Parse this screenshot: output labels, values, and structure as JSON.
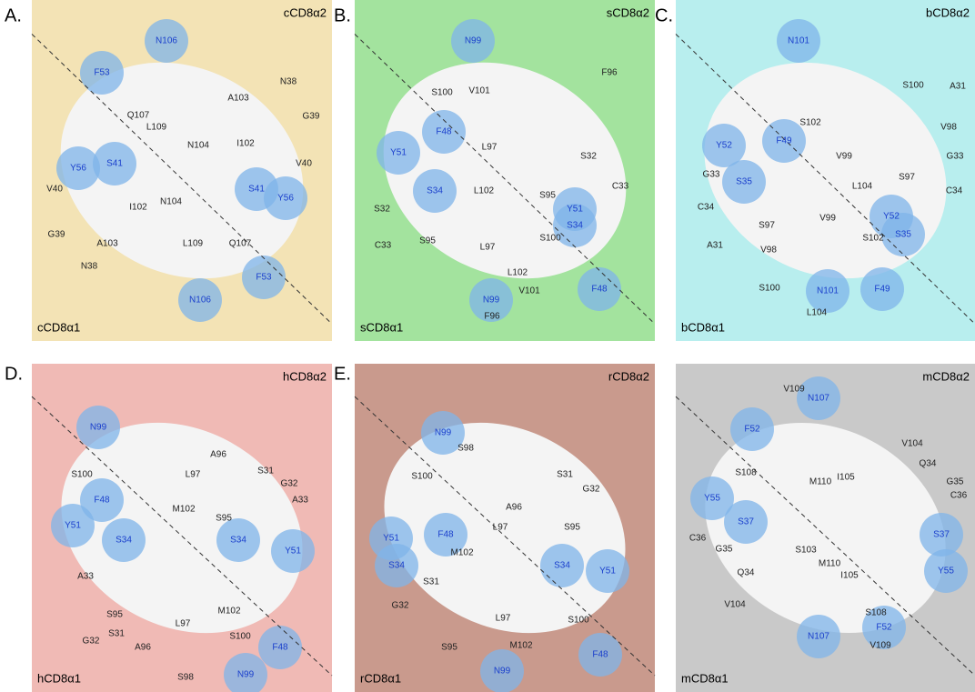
{
  "panels": [
    {
      "letter": "A.",
      "top_label": "cCD8α2",
      "bottom_label": "cCD8α1",
      "residues": [
        "N106",
        "F53",
        "Q107",
        "L109",
        "N38",
        "A103",
        "G39",
        "N104",
        "I102",
        "S41",
        "Y56",
        "V40",
        "V40",
        "I102",
        "N104",
        "S41",
        "Y56",
        "G39",
        "A103",
        "L109",
        "Q107",
        "N38",
        "F53",
        "N106"
      ]
    },
    {
      "letter": "B.",
      "top_label": "sCD8α2",
      "bottom_label": "sCD8α1",
      "residues": [
        "N99",
        "S100",
        "V101",
        "F96",
        "F48",
        "L97",
        "Y51",
        "L102",
        "S32",
        "S34",
        "Y51",
        "C33",
        "S32",
        "S95",
        "C33",
        "S95",
        "L97",
        "S100",
        "S34",
        "L102",
        "N99",
        "V101",
        "F48",
        "F96"
      ]
    },
    {
      "letter": "C.",
      "top_label": "bCD8α2",
      "bottom_label": "bCD8α1",
      "residues": [
        "N101",
        "S100",
        "S102",
        "A31",
        "F49",
        "Y52",
        "V98",
        "V99",
        "G33",
        "S35",
        "L104",
        "S97",
        "G33",
        "C34",
        "Y52",
        "C34",
        "S97",
        "V99",
        "S35",
        "A31",
        "V98",
        "S102",
        "S100",
        "N101",
        "L104",
        "F49"
      ]
    },
    {
      "letter": "D.",
      "top_label": "hCD8α2",
      "bottom_label": "hCD8α1",
      "residues": [
        "N99",
        "A96",
        "L97",
        "S31",
        "S100",
        "G32",
        "F48",
        "A33",
        "M102",
        "S95",
        "Y51",
        "S34",
        "S34",
        "Y51",
        "A33",
        "S95",
        "S31",
        "G32",
        "M102",
        "L97",
        "S100",
        "A96",
        "F48",
        "S98",
        "N99"
      ]
    },
    {
      "letter": "E.",
      "top_label": "rCD8α2",
      "bottom_label": "rCD8α1",
      "residues": [
        "N99",
        "S98",
        "S100",
        "S31",
        "G32",
        "A96",
        "L97",
        "F48",
        "Y51",
        "S95",
        "M102",
        "S34",
        "Y51",
        "S34",
        "S31",
        "G32",
        "L97",
        "S100",
        "M102",
        "S95",
        "F48",
        "N99"
      ]
    },
    {
      "top_label": "mCD8α2",
      "bottom_label": "mCD8α1",
      "residues": [
        "N107",
        "V109",
        "F52",
        "V104",
        "S108",
        "I105",
        "M110",
        "Q34",
        "G35",
        "C36",
        "Y55",
        "S37",
        "S37",
        "C36",
        "G35",
        "S103",
        "Y55",
        "Q34",
        "I105",
        "M110",
        "V104",
        "S108",
        "F52",
        "V109",
        "N107"
      ]
    }
  ]
}
